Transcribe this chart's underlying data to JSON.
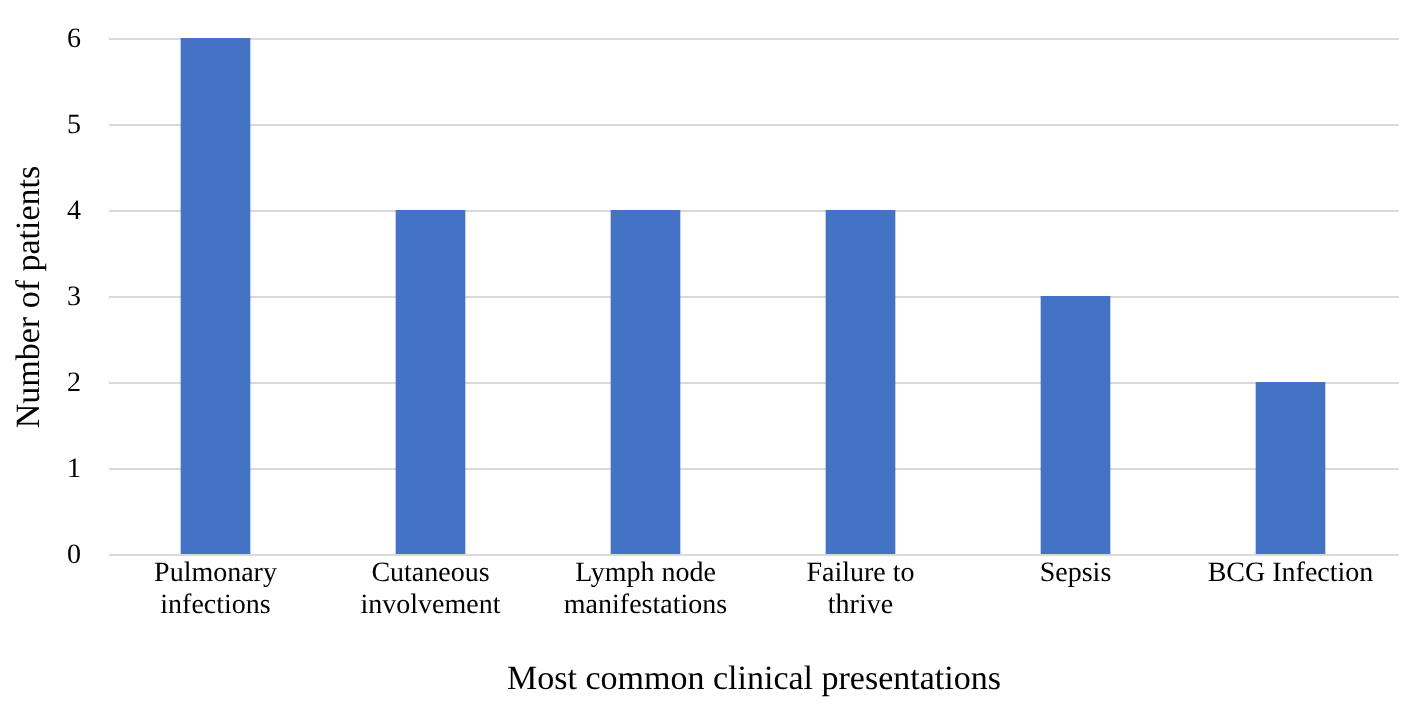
{
  "chart_data": {
    "type": "bar",
    "xlabel": "Most common clinical presentations",
    "ylabel": "Number of patients",
    "categories": [
      "Pulmonary infections",
      "Cutaneous involvement",
      "Lymph node manifestations",
      "Failure to thrive",
      "Sepsis",
      "BCG Infection"
    ],
    "values": [
      6,
      4,
      4,
      4,
      3,
      2
    ],
    "color": "#4472c4",
    "ylim": [
      0,
      6
    ],
    "yticks": [
      0,
      1,
      2,
      3,
      4,
      5,
      6
    ],
    "grid": "y"
  }
}
